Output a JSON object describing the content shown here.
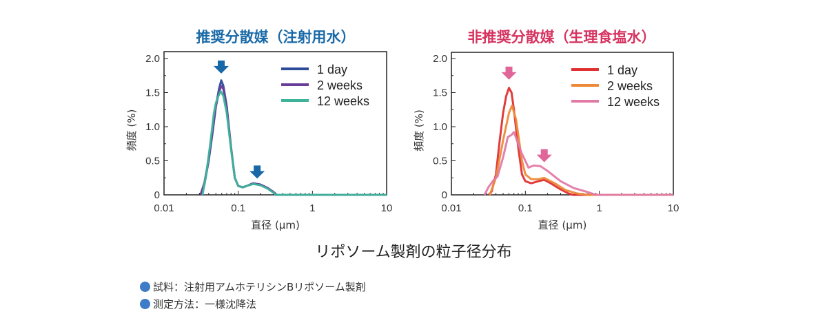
{
  "chart_data": [
    {
      "type": "line",
      "title": "推奨分散媒（注射用水）",
      "title_color": "#1a6aa8",
      "xlabel": "直径 (μm)",
      "ylabel": "頻度 (%)",
      "xscale": "log",
      "xlim": [
        0.01,
        10
      ],
      "ylim": [
        0,
        2.0
      ],
      "xticks": [
        "0.01",
        "0.1",
        "1",
        "10"
      ],
      "yticks": [
        "0",
        "0.5",
        "1.0",
        "1.5",
        "2.0"
      ],
      "legend_position": "top-right",
      "arrow_color": "#1868a8",
      "arrows": [
        {
          "x": 0.059,
          "y": 1.87
        },
        {
          "x": 0.18,
          "y": 0.33
        }
      ],
      "series": [
        {
          "name": "1 day",
          "color": "#2e4a9a",
          "x": [
            0.031,
            0.035,
            0.04,
            0.045,
            0.05,
            0.055,
            0.059,
            0.063,
            0.07,
            0.08,
            0.09,
            0.1,
            0.115,
            0.13,
            0.16,
            0.2,
            0.25,
            0.3,
            0.33,
            10
          ],
          "y": [
            0,
            0.15,
            0.5,
            0.9,
            1.3,
            1.55,
            1.68,
            1.6,
            1.3,
            0.7,
            0.25,
            0.13,
            0.11,
            0.13,
            0.17,
            0.15,
            0.1,
            0.04,
            0,
            0
          ]
        },
        {
          "name": "2 weeks",
          "color": "#6a3d99",
          "x": [
            0.031,
            0.035,
            0.04,
            0.045,
            0.05,
            0.055,
            0.059,
            0.063,
            0.07,
            0.08,
            0.09,
            0.1,
            0.115,
            0.13,
            0.16,
            0.2,
            0.25,
            0.3,
            0.33,
            10
          ],
          "y": [
            0,
            0.18,
            0.52,
            0.92,
            1.3,
            1.5,
            1.6,
            1.55,
            1.28,
            0.7,
            0.25,
            0.13,
            0.11,
            0.13,
            0.17,
            0.15,
            0.1,
            0.04,
            0,
            0
          ]
        },
        {
          "name": "12 weeks",
          "color": "#3db39a",
          "x": [
            0.033,
            0.037,
            0.042,
            0.047,
            0.05,
            0.054,
            0.058,
            0.063,
            0.07,
            0.08,
            0.09,
            0.1,
            0.115,
            0.13,
            0.16,
            0.2,
            0.25,
            0.3,
            0.32,
            10
          ],
          "y": [
            0,
            0.3,
            0.75,
            1.2,
            1.35,
            1.45,
            1.52,
            1.45,
            1.2,
            0.68,
            0.25,
            0.13,
            0.11,
            0.13,
            0.16,
            0.14,
            0.09,
            0.03,
            0,
            0
          ]
        }
      ]
    },
    {
      "type": "line",
      "title": "非推奨分散媒（生理食塩水）",
      "title_color": "#d6335f",
      "xlabel": "直径 (μm)",
      "ylabel": "頻度 (%)",
      "xscale": "log",
      "xlim": [
        0.01,
        10
      ],
      "ylim": [
        0,
        2.0
      ],
      "xticks": [
        "0.01",
        "0.1",
        "1",
        "10"
      ],
      "yticks": [
        "0",
        "0.5",
        "1.0",
        "1.5",
        "2.0"
      ],
      "legend_position": "top-right",
      "arrow_color": "#e0669a",
      "arrows": [
        {
          "x": 0.06,
          "y": 1.78
        },
        {
          "x": 0.18,
          "y": 0.57
        }
      ],
      "series": [
        {
          "name": "1 day",
          "color": "#e03030",
          "x": [
            0.032,
            0.035,
            0.04,
            0.045,
            0.05,
            0.055,
            0.06,
            0.065,
            0.07,
            0.08,
            0.09,
            0.1,
            0.12,
            0.15,
            0.18,
            0.22,
            0.3,
            0.4,
            0.45,
            10
          ],
          "y": [
            0,
            0.05,
            0.3,
            0.8,
            1.2,
            1.45,
            1.57,
            1.5,
            1.25,
            0.7,
            0.3,
            0.2,
            0.17,
            0.2,
            0.22,
            0.17,
            0.08,
            0.01,
            0,
            0
          ]
        },
        {
          "name": "2 weeks",
          "color": "#ec8a3a",
          "x": [
            0.033,
            0.04,
            0.05,
            0.06,
            0.066,
            0.075,
            0.09,
            0.1,
            0.12,
            0.15,
            0.18,
            0.25,
            0.35,
            0.5,
            0.7,
            10
          ],
          "y": [
            0,
            0.25,
            0.8,
            1.2,
            1.31,
            1.1,
            0.5,
            0.3,
            0.23,
            0.23,
            0.25,
            0.17,
            0.07,
            0.02,
            0,
            0
          ]
        },
        {
          "name": "12 weeks",
          "color": "#e27aa6",
          "x": [
            0.028,
            0.032,
            0.038,
            0.042,
            0.05,
            0.058,
            0.065,
            0.07,
            0.08,
            0.09,
            0.1,
            0.11,
            0.13,
            0.16,
            0.2,
            0.3,
            0.45,
            0.7,
            0.9,
            10
          ],
          "y": [
            0,
            0.12,
            0.23,
            0.27,
            0.55,
            0.85,
            0.88,
            0.92,
            0.75,
            0.6,
            0.5,
            0.4,
            0.43,
            0.42,
            0.35,
            0.2,
            0.1,
            0.04,
            0,
            0
          ]
        }
      ]
    }
  ],
  "main_title": "リポソーム製剤の粒子径分布",
  "notes": [
    "試料：注射用アムホテリシンBリポソーム製剤",
    "測定方法：一様沈降法"
  ],
  "note_bullet_color": "#3e7cc8"
}
